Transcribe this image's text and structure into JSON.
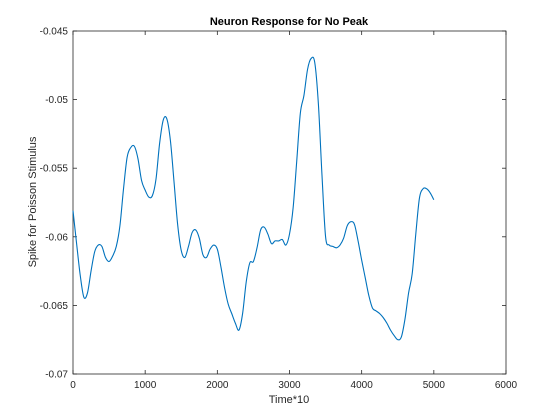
{
  "chart_data": {
    "type": "line",
    "title": "Neuron Response for No Peak",
    "xlabel": "Time*10",
    "ylabel": "Spike for Poisson Stimulus",
    "xlim": [
      0,
      6000
    ],
    "ylim": [
      -0.07,
      -0.045
    ],
    "xticks": [
      0,
      1000,
      2000,
      3000,
      4000,
      5000,
      6000
    ],
    "xtick_labels": [
      "0",
      "1000",
      "2000",
      "3000",
      "4000",
      "5000",
      "6000"
    ],
    "yticks": [
      -0.07,
      -0.065,
      -0.06,
      -0.055,
      -0.05,
      -0.045
    ],
    "ytick_labels": [
      "-0.07",
      "-0.065",
      "-0.06",
      "-0.055",
      "-0.05",
      "-0.045"
    ],
    "grid": false,
    "line_color": "#0072bd",
    "series": [
      {
        "x": [
          0,
          50,
          100,
          150,
          200,
          250,
          300,
          350,
          400,
          450,
          500,
          550,
          600,
          650,
          700,
          750,
          800,
          850,
          900,
          950,
          1000,
          1050,
          1100,
          1150,
          1200,
          1250,
          1300,
          1350,
          1400,
          1450,
          1500,
          1550,
          1600,
          1650,
          1700,
          1750,
          1800,
          1850,
          1900,
          1950,
          2000,
          2050,
          2100,
          2150,
          2200,
          2250,
          2300,
          2350,
          2400,
          2450,
          2500,
          2550,
          2600,
          2650,
          2700,
          2750,
          2800,
          2850,
          2900,
          2950,
          3000,
          3050,
          3100,
          3150,
          3200,
          3250,
          3300,
          3350,
          3400,
          3450,
          3500,
          3550,
          3600,
          3650,
          3700,
          3750,
          3800,
          3850,
          3900,
          3950,
          4000,
          4050,
          4100,
          4150,
          4200,
          4250,
          4300,
          4350,
          4400,
          4450,
          4500,
          4550,
          4600,
          4650,
          4700,
          4750,
          4800,
          4850,
          4900,
          4950,
          5000
        ],
        "y": [
          -0.0581,
          -0.0605,
          -0.0628,
          -0.0644,
          -0.0641,
          -0.0625,
          -0.0611,
          -0.0606,
          -0.0607,
          -0.0615,
          -0.0618,
          -0.0614,
          -0.0607,
          -0.0592,
          -0.0565,
          -0.0542,
          -0.0535,
          -0.0534,
          -0.0543,
          -0.0559,
          -0.0566,
          -0.0571,
          -0.057,
          -0.0558,
          -0.0532,
          -0.0515,
          -0.0514,
          -0.053,
          -0.056,
          -0.0591,
          -0.061,
          -0.0615,
          -0.0607,
          -0.0597,
          -0.0595,
          -0.0601,
          -0.0613,
          -0.0615,
          -0.0609,
          -0.0606,
          -0.0609,
          -0.0622,
          -0.0637,
          -0.0649,
          -0.0656,
          -0.0663,
          -0.0668,
          -0.0656,
          -0.0633,
          -0.0619,
          -0.0618,
          -0.0608,
          -0.0595,
          -0.0593,
          -0.0598,
          -0.0605,
          -0.0603,
          -0.0603,
          -0.0602,
          -0.0606,
          -0.0598,
          -0.0579,
          -0.0545,
          -0.051,
          -0.0497,
          -0.0478,
          -0.047,
          -0.0473,
          -0.0503,
          -0.0555,
          -0.06,
          -0.0606,
          -0.0607,
          -0.0608,
          -0.0606,
          -0.0601,
          -0.0592,
          -0.0589,
          -0.0591,
          -0.0603,
          -0.0617,
          -0.063,
          -0.0643,
          -0.0652,
          -0.0654,
          -0.0656,
          -0.0659,
          -0.0663,
          -0.0668,
          -0.0672,
          -0.0675,
          -0.0673,
          -0.066,
          -0.0641,
          -0.0627,
          -0.0598,
          -0.0572,
          -0.0565,
          -0.0565,
          -0.0568,
          -0.0573
        ]
      }
    ]
  }
}
